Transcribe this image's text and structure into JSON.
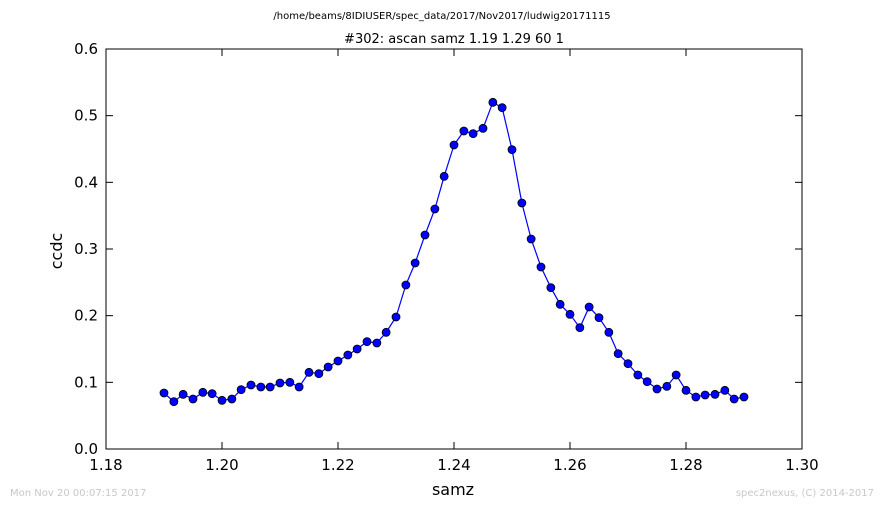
{
  "file_path": "/home/beams/8IDIUSER/spec_data/2017/Nov2017/ludwig20171115",
  "footer_left": "Mon Nov 20 00:07:15 2017",
  "footer_right": "spec2nexus, (C) 2014-2017",
  "chart_data": {
    "type": "line",
    "title": "#302: ascan  samz 1.19 1.29  60 1",
    "xlabel": "samz",
    "ylabel": "ccdc",
    "xlim": [
      1.18,
      1.3
    ],
    "ylim": [
      0.0,
      0.6
    ],
    "xticks": [
      "1.18",
      "1.20",
      "1.22",
      "1.24",
      "1.26",
      "1.28",
      "1.30"
    ],
    "yticks": [
      "0.0",
      "0.1",
      "0.2",
      "0.3",
      "0.4",
      "0.5",
      "0.6"
    ],
    "grid": false,
    "color": "#0000ff",
    "marker": "circle",
    "series": [
      {
        "x": [
          1.19,
          1.1917,
          1.1933,
          1.195,
          1.1967,
          1.1983,
          1.2,
          1.2017,
          1.2033,
          1.205,
          1.2067,
          1.2083,
          1.21,
          1.2117,
          1.2133,
          1.215,
          1.2167,
          1.2183,
          1.22,
          1.2217,
          1.2233,
          1.225,
          1.2267,
          1.2283,
          1.23,
          1.2317,
          1.2333,
          1.235,
          1.2367,
          1.2383,
          1.24,
          1.2417,
          1.2433,
          1.245,
          1.2467,
          1.2483,
          1.25,
          1.2517,
          1.2533,
          1.255,
          1.2567,
          1.2583,
          1.26,
          1.2617,
          1.2633,
          1.265,
          1.2667,
          1.2683,
          1.27,
          1.2717,
          1.2733,
          1.275,
          1.2767,
          1.2783,
          1.28,
          1.2817,
          1.2833,
          1.285,
          1.2867,
          1.2883,
          1.29
        ],
        "y": [
          0.084,
          0.071,
          0.082,
          0.075,
          0.085,
          0.083,
          0.073,
          0.075,
          0.089,
          0.096,
          0.093,
          0.093,
          0.099,
          0.1,
          0.093,
          0.115,
          0.113,
          0.123,
          0.132,
          0.141,
          0.15,
          0.161,
          0.159,
          0.175,
          0.198,
          0.246,
          0.279,
          0.321,
          0.36,
          0.409,
          0.456,
          0.477,
          0.473,
          0.481,
          0.52,
          0.512,
          0.449,
          0.369,
          0.315,
          0.273,
          0.242,
          0.217,
          0.202,
          0.182,
          0.213,
          0.197,
          0.175,
          0.143,
          0.128,
          0.111,
          0.101,
          0.09,
          0.094,
          0.111,
          0.088,
          0.078,
          0.081,
          0.082,
          0.088,
          0.075,
          0.078
        ]
      }
    ]
  }
}
